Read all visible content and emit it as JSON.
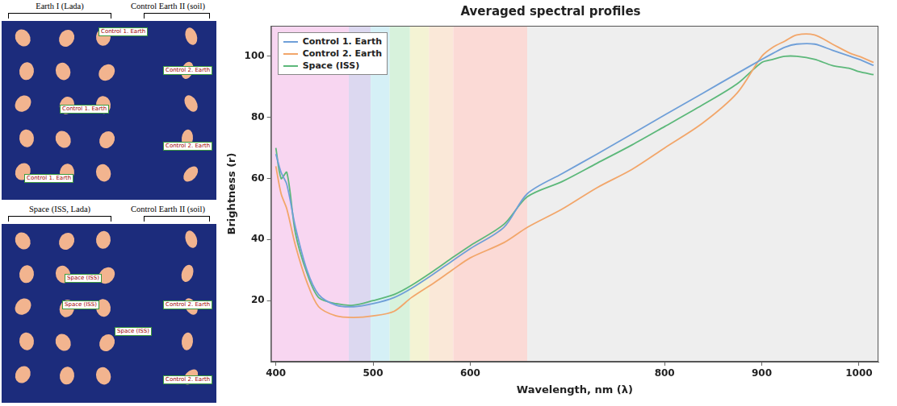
{
  "photo_panels": [
    {
      "headings": [
        "Earth I  (Lada)",
        "Control Earth II (soil)"
      ],
      "tags": [
        "Control 1. Earth",
        "Control 2. Earth",
        "Control 1. Earth",
        "Control 1. Earth",
        "Control 2. Earth"
      ]
    },
    {
      "headings": [
        "Space (ISS, Lada)",
        "Control Earth II (soil)"
      ],
      "tags": [
        "Space (ISS)",
        "Space (ISS)",
        "Control 2. Earth",
        "Space (ISS)",
        "Control 2. Earth"
      ]
    }
  ],
  "chart_data": {
    "type": "line",
    "title": "Averaged spectral profiles",
    "x_label": "Wavelength, nm (λ)",
    "y_label": "Brightness (r)",
    "x": [
      400,
      405.4,
      411.3,
      420.2,
      432,
      444,
      462,
      479.8,
      500,
      521.6,
      539.5,
      563.5,
      581.4,
      600,
      634.7,
      658.7,
      694.6,
      730.5,
      766.5,
      800,
      838.6,
      874.7,
      900,
      911.6,
      923.8,
      936,
      954.3,
      972.6,
      990.9,
      1000,
      1015
    ],
    "series": [
      {
        "name": "Control 1. Earth",
        "color": "#6f9fd8",
        "values": [
          68,
          62,
          58,
          44,
          30,
          22,
          18.5,
          18,
          19,
          21,
          24,
          29,
          33,
          37,
          44,
          55,
          61.6,
          68,
          74.6,
          80.8,
          87.8,
          94.4,
          99,
          101,
          103,
          104,
          104,
          102,
          100,
          99,
          97
        ]
      },
      {
        "name": "Control 2. Earth",
        "color": "#f2a66a",
        "values": [
          64,
          55,
          50,
          38,
          26,
          18,
          15,
          14.5,
          15,
          16.5,
          21,
          26,
          30,
          34,
          39,
          44,
          50,
          57,
          63,
          70,
          78,
          88,
          100,
          103,
          105,
          107,
          107,
          104,
          101,
          100,
          98
        ]
      },
      {
        "name": "Space (ISS)",
        "color": "#5cb87a",
        "values": [
          70,
          60,
          62,
          42,
          29,
          21,
          19,
          18.5,
          20,
          22,
          25,
          30,
          34,
          38,
          45,
          54,
          59,
          65,
          71,
          77,
          84,
          91,
          98,
          99,
          100,
          100,
          99,
          97,
          96,
          95,
          94
        ]
      }
    ],
    "spectral_bands": [
      {
        "from": 395,
        "to": 475,
        "color": "#f8d6f1"
      },
      {
        "from": 475,
        "to": 497.6,
        "color": "#dcd8f0"
      },
      {
        "from": 497.6,
        "to": 517,
        "color": "#d5f0f6"
      },
      {
        "from": 517,
        "to": 538,
        "color": "#d7f2dc"
      },
      {
        "from": 538,
        "to": 557.5,
        "color": "#f4f3d4"
      },
      {
        "from": 557.5,
        "to": 582.6,
        "color": "#fae8d8"
      },
      {
        "from": 582.6,
        "to": 658.7,
        "color": "#fbdad6"
      },
      {
        "from": 658.7,
        "to": 1020,
        "color": "#eeeeee"
      }
    ],
    "xlim": [
      395,
      1020
    ],
    "xticks": [
      400,
      500,
      600,
      800,
      900,
      1000
    ],
    "ylim": [
      0,
      110
    ],
    "yticks": [
      20,
      40,
      60,
      80,
      100
    ],
    "grid": false,
    "legend": "upper left"
  }
}
